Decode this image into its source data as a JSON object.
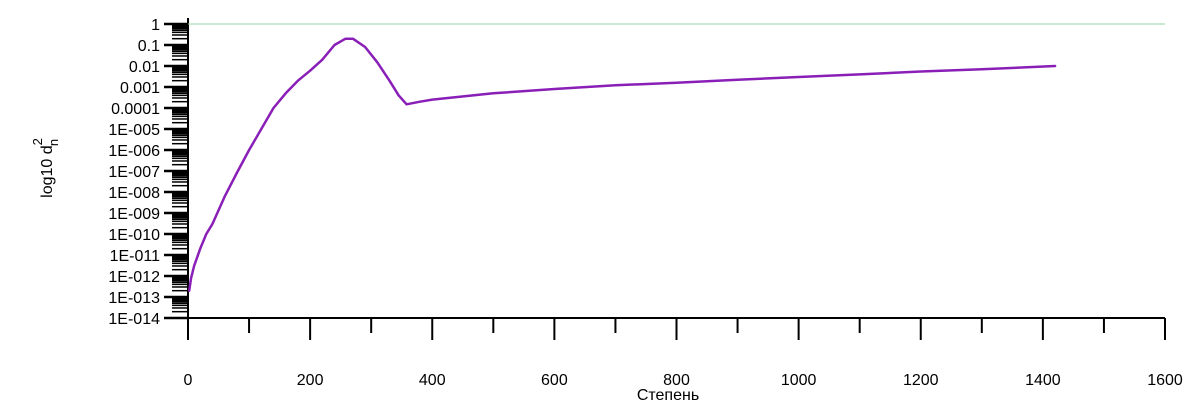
{
  "chart_data": {
    "type": "line",
    "xlabel": "Степень",
    "ylabel": "log10 d",
    "ylabel_superscript": "2",
    "ylabel_subscript": "n",
    "xlim": [
      0,
      1600
    ],
    "ylim": [
      1e-14,
      1
    ],
    "y_scale": "log",
    "x_ticks": [
      0,
      200,
      400,
      600,
      800,
      1000,
      1200,
      1400,
      1600
    ],
    "x_tick_labels": [
      "0",
      "200",
      "400",
      "600",
      "800",
      "1000",
      "1200",
      "1400",
      "1600"
    ],
    "y_ticks": [
      1,
      0.1,
      0.01,
      0.001,
      0.0001,
      1e-05,
      1e-06,
      1e-07,
      1e-08,
      1e-09,
      1e-10,
      1e-11,
      1e-12,
      1e-13,
      1e-14
    ],
    "y_tick_labels": [
      "1",
      "0.1",
      "0.01",
      "0.001",
      "0.0001",
      "1E-005",
      "1E-006",
      "1E-007",
      "1E-008",
      "1E-009",
      "1E-010",
      "1E-011",
      "1E-012",
      "1E-013",
      "1E-014"
    ],
    "reference_line": {
      "y": 1,
      "color": "#8fd4a0"
    },
    "series": [
      {
        "color": "#8a1fb8",
        "x": [
          2,
          5,
          10,
          20,
          30,
          40,
          60,
          80,
          100,
          120,
          140,
          160,
          180,
          200,
          220,
          240,
          258,
          270,
          290,
          310,
          330,
          345,
          358,
          380,
          400,
          500,
          600,
          700,
          800,
          900,
          1000,
          1100,
          1200,
          1300,
          1420
        ],
        "y": [
          2e-13,
          8e-13,
          3e-12,
          2e-11,
          1e-10,
          3e-10,
          6e-09,
          8e-08,
          1e-06,
          1e-05,
          0.0001,
          0.0005,
          0.002,
          0.006,
          0.02,
          0.1,
          0.2,
          0.2,
          0.08,
          0.015,
          0.002,
          0.0004,
          0.00015,
          0.0002,
          0.00025,
          0.0005,
          0.0008,
          0.0012,
          0.0016,
          0.0022,
          0.003,
          0.004,
          0.0055,
          0.007,
          0.01
        ]
      }
    ]
  }
}
